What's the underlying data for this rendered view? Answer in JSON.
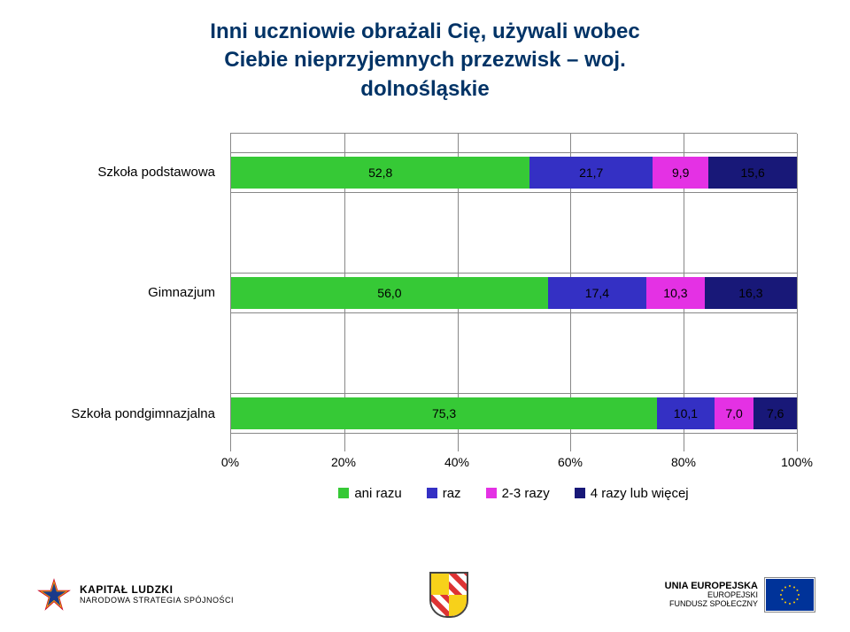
{
  "title_line1": "Inni uczniowie obrażali Cię, używali wobec",
  "title_line2": "Ciebie nieprzyjemnych przezwisk – woj.",
  "title_line3": "dolnośląskie",
  "title_color": "#003366",
  "chart": {
    "type": "stacked-bar-horizontal",
    "x_axis": {
      "min": 0,
      "max": 100,
      "ticks": [
        "0%",
        "20%",
        "40%",
        "60%",
        "80%",
        "100%"
      ],
      "tick_positions_pct": [
        0,
        20,
        40,
        60,
        80,
        100
      ]
    },
    "series": [
      {
        "key": "ani_razu",
        "label": "ani razu",
        "color": "#36c936"
      },
      {
        "key": "raz",
        "label": "raz",
        "color": "#3430c4"
      },
      {
        "key": "r23",
        "label": "2-3 razy",
        "color": "#e431e4"
      },
      {
        "key": "r4plus",
        "label": "4 razy lub więcej",
        "color": "#181878"
      }
    ],
    "categories": [
      {
        "label": "Szkoła podstawowa",
        "values": [
          52.8,
          21.7,
          9.9,
          15.6
        ],
        "value_labels": [
          "52,8",
          "21,7",
          "9,9",
          "15,6"
        ]
      },
      {
        "label": "Gimnazjum",
        "values": [
          56.0,
          17.4,
          10.3,
          16.3
        ],
        "value_labels": [
          "56,0",
          "17,4",
          "10,3",
          "16,3"
        ]
      },
      {
        "label": "Szkoła pondgimnazjalna",
        "values": [
          75.3,
          10.1,
          7.0,
          7.6
        ],
        "value_labels": [
          "75,3",
          "10,1",
          "7,0",
          "7,6"
        ]
      }
    ],
    "row_positions_pct": [
      6,
      44,
      82
    ],
    "value_label_fontsize": 14,
    "category_label_fontsize": 15,
    "grid_color": "#888888",
    "background": "#ffffff"
  },
  "footer": {
    "left_logo": {
      "title": "KAPITAŁ LUDZKI",
      "sub": "NARODOWA STRATEGIA SPÓJNOŚCI"
    },
    "right_logo": {
      "title": "UNIA EUROPEJSKA",
      "sub1": "EUROPEJSKI",
      "sub2": "FUNDUSZ SPOŁECZNY"
    }
  }
}
